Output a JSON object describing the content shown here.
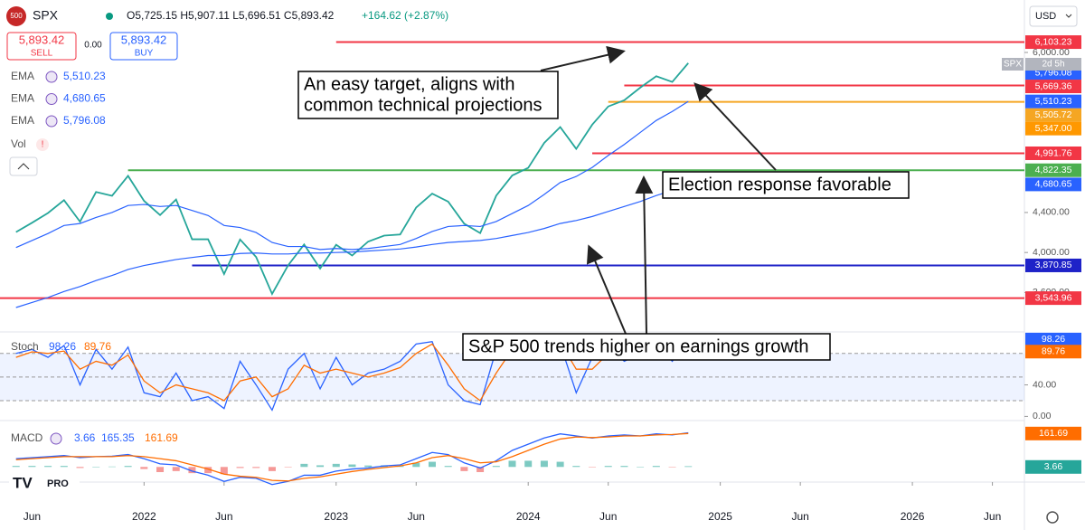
{
  "header": {
    "badge": "500",
    "symbol": "SPX",
    "ohlc": "O5,725.15 H5,907.11 L5,696.51 C5,893.42",
    "change": "+164.62 (+2.87%)",
    "sell_price": "5,893.42",
    "sell": "SELL",
    "spread": "0.00",
    "buy_price": "5,893.42",
    "buy": "BUY",
    "currency": "USD",
    "logo": "PRO",
    "tag_symbol": "SPX",
    "tag_time": "2d 5h",
    "indicators": [
      {
        "name": "EMA",
        "value": "5,510.23"
      },
      {
        "name": "EMA",
        "value": "4,680.65"
      },
      {
        "name": "EMA",
        "value": "5,796.08"
      }
    ],
    "vol": "Vol"
  },
  "chart_data": [
    {
      "type": "line",
      "x": [
        "2021-05",
        "2021-06",
        "2021-07",
        "2021-08",
        "2021-09",
        "2021-10",
        "2021-11",
        "2021-12",
        "2022-01",
        "2022-02",
        "2022-03",
        "2022-04",
        "2022-05",
        "2022-06",
        "2022-07",
        "2022-08",
        "2022-09",
        "2022-10",
        "2022-11",
        "2022-12",
        "2023-01",
        "2023-02",
        "2023-03",
        "2023-04",
        "2023-05",
        "2023-06",
        "2023-07",
        "2023-08",
        "2023-09",
        "2023-10",
        "2023-11",
        "2023-12",
        "2024-01",
        "2024-02",
        "2024-03",
        "2024-04",
        "2024-05",
        "2024-06",
        "2024-07",
        "2024-08",
        "2024-09",
        "2024-10",
        "2024-11"
      ],
      "xlim": [
        "2021-04",
        "2026-08"
      ],
      "ylim": [
        3215,
        6271
      ],
      "yticks": [
        {
          "value": 6000,
          "label": "6,000.00"
        },
        {
          "value": 4400,
          "label": "4,400.00"
        },
        {
          "value": 4000,
          "label": "4,000.00"
        },
        {
          "value": 3600,
          "label": "3,600.00"
        }
      ],
      "series": [
        {
          "name": "SPX",
          "color": "#26a69a",
          "values": [
            4204,
            4297,
            4395,
            4523,
            4308,
            4605,
            4567,
            4766,
            4516,
            4374,
            4530,
            4132,
            4132,
            3785,
            4130,
            3955,
            3586,
            3872,
            4080,
            3840,
            4077,
            3970,
            4109,
            4169,
            4180,
            4450,
            4589,
            4508,
            4288,
            4194,
            4568,
            4770,
            4846,
            5096,
            5254,
            5036,
            5278,
            5460,
            5522,
            5648,
            5762,
            5705,
            5893.42
          ]
        },
        {
          "name": "EMA",
          "color": "#2962ff",
          "values": [
            4050,
            4120,
            4190,
            4270,
            4290,
            4350,
            4400,
            4470,
            4480,
            4460,
            4470,
            4420,
            4370,
            4270,
            4250,
            4200,
            4100,
            4060,
            4060,
            4030,
            4040,
            4030,
            4040,
            4060,
            4080,
            4140,
            4210,
            4260,
            4270,
            4260,
            4310,
            4390,
            4470,
            4580,
            4700,
            4760,
            4850,
            4970,
            5080,
            5200,
            5320,
            5410,
            5510.23
          ]
        },
        {
          "name": "EMA",
          "color": "#2962ff",
          "values": [
            3450,
            3500,
            3550,
            3610,
            3660,
            3720,
            3770,
            3830,
            3870,
            3900,
            3930,
            3950,
            3970,
            3970,
            3990,
            3995,
            3985,
            3985,
            3995,
            3995,
            4000,
            4005,
            4015,
            4025,
            4035,
            4055,
            4080,
            4100,
            4110,
            4120,
            4140,
            4170,
            4200,
            4240,
            4290,
            4320,
            4360,
            4410,
            4460,
            4510,
            4570,
            4620,
            4680.65
          ]
        }
      ],
      "levels": [
        {
          "value": 6103.23,
          "label": "6,103.23",
          "color": "#f23645",
          "from": "2023-01"
        },
        {
          "value": 5669.36,
          "label": "5,669.36",
          "color": "#f23645",
          "from": "2024-07"
        },
        {
          "value": 5505.72,
          "label": "5,505.72",
          "color": "#f5a623",
          "from": "2024-06"
        },
        {
          "value": 4991.76,
          "label": "4,991.76",
          "color": "#f23645",
          "from": "2024-05"
        },
        {
          "value": 4822.35,
          "label": "4,822.35",
          "color": "#4caf50",
          "from": "2021-12"
        },
        {
          "value": 3870.85,
          "label": "3,870.85",
          "color": "#1e22c8",
          "from": "2022-04"
        },
        {
          "value": 3543.96,
          "label": "3,543.96",
          "color": "#f23645",
          "from": "2021-04"
        }
      ],
      "markers": [
        {
          "value": 5796.08,
          "label": "5,796.08",
          "color": "#2962ff"
        },
        {
          "value": 5510.23,
          "label": "5,510.23",
          "color": "#2962ff"
        },
        {
          "value": 5347,
          "label": "5,347.00",
          "color": "#ff9800"
        },
        {
          "value": 4680.65,
          "label": "4,680.65",
          "color": "#2962ff"
        }
      ],
      "annotations": [
        "An easy target, aligns with",
        "common technical projections",
        "Election response favorable",
        "S&P 500 trends higher on earnings growth"
      ]
    },
    {
      "type": "line",
      "title": "Stoch",
      "legend_values": [
        "98.26",
        "89.76"
      ],
      "ylim": [
        -3,
        105
      ],
      "yticks": [
        {
          "value": 40,
          "label": "40.00"
        },
        {
          "value": 0,
          "label": "0.00"
        }
      ],
      "levels": [
        80,
        50,
        20
      ],
      "series": [
        {
          "name": "%K",
          "color": "#2962ff",
          "values": [
            80,
            85,
            75,
            90,
            40,
            85,
            60,
            88,
            30,
            25,
            55,
            20,
            25,
            10,
            70,
            40,
            8,
            60,
            80,
            35,
            75,
            40,
            55,
            60,
            70,
            92,
            95,
            40,
            20,
            15,
            85,
            95,
            90,
            95,
            92,
            30,
            75,
            90,
            70,
            80,
            92,
            70,
            98.26
          ]
        },
        {
          "name": "%D",
          "color": "#ff6d00",
          "values": [
            75,
            82,
            80,
            83,
            60,
            70,
            65,
            78,
            45,
            30,
            40,
            35,
            30,
            20,
            45,
            50,
            25,
            35,
            65,
            55,
            60,
            55,
            50,
            55,
            62,
            80,
            92,
            65,
            35,
            20,
            55,
            85,
            92,
            93,
            94,
            60,
            60,
            80,
            78,
            75,
            85,
            80,
            89.76
          ]
        }
      ]
    },
    {
      "type": "macd",
      "title": "MACD",
      "legend_values": [
        "3.66",
        "165.35",
        "161.69"
      ],
      "ylim": [
        -60,
        220
      ],
      "xticks": [
        {
          "value": "2021-06",
          "label": "Jun"
        },
        {
          "value": "2022-01",
          "label": "2022"
        },
        {
          "value": "2022-06",
          "label": "Jun"
        },
        {
          "value": "2023-01",
          "label": "2023"
        },
        {
          "value": "2023-06",
          "label": "Jun"
        },
        {
          "value": "2024-01",
          "label": "2024"
        },
        {
          "value": "2024-06",
          "label": "Jun"
        },
        {
          "value": "2025-01",
          "label": "2025"
        },
        {
          "value": "2025-06",
          "label": "Jun"
        },
        {
          "value": "2026-01",
          "label": "2026"
        },
        {
          "value": "2026-06",
          "label": "Jun"
        }
      ],
      "histogram": [
        5,
        5,
        5,
        5,
        -5,
        0,
        2,
        5,
        -10,
        -25,
        -20,
        -30,
        -30,
        -35,
        -5,
        -5,
        -20,
        -2,
        15,
        8,
        15,
        12,
        7,
        8,
        5,
        20,
        25,
        5,
        -20,
        -25,
        5,
        30,
        30,
        30,
        25,
        5,
        -2,
        5,
        5,
        0,
        5,
        -2,
        3.66
      ],
      "series": [
        {
          "name": "MACD",
          "color": "#2962ff",
          "values": [
            40,
            45,
            50,
            55,
            45,
            50,
            52,
            60,
            40,
            15,
            10,
            -20,
            -40,
            -70,
            -50,
            -55,
            -85,
            -70,
            -40,
            -40,
            -20,
            -10,
            -5,
            5,
            10,
            40,
            70,
            60,
            20,
            -5,
            30,
            80,
            110,
            140,
            160,
            150,
            140,
            150,
            155,
            150,
            160,
            155,
            165.35
          ]
        },
        {
          "name": "Signal",
          "color": "#ff6d00",
          "values": [
            35,
            40,
            45,
            50,
            50,
            50,
            50,
            55,
            50,
            40,
            30,
            10,
            -10,
            -35,
            -45,
            -50,
            -65,
            -68,
            -55,
            -48,
            -35,
            -22,
            -12,
            -3,
            5,
            20,
            45,
            55,
            40,
            20,
            25,
            50,
            80,
            110,
            135,
            145,
            142,
            145,
            150,
            150,
            155,
            157,
            161.69
          ]
        }
      ]
    }
  ]
}
